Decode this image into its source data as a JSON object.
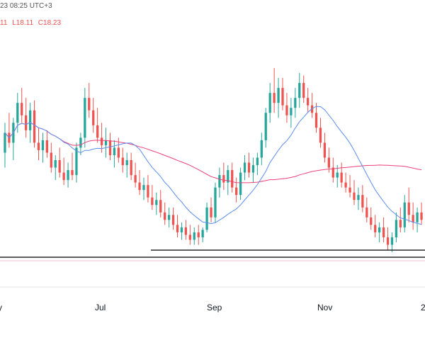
{
  "header": {
    "datetime": "23 08:25 UTC+3",
    "ohlc": {
      "high_fragment": "11",
      "low": "L18.11",
      "close": "C18.23"
    }
  },
  "colors": {
    "up": "#26a69a",
    "down": "#ef5350",
    "ma_fast": "#5b8def",
    "ma_slow": "#ec407a",
    "support_line": "#000000",
    "text": "#131722"
  },
  "chart_data": {
    "type": "candlestick",
    "x_tick_labels": [
      "y",
      "Jul",
      "Sep",
      "Nov",
      "2"
    ],
    "last_close": 18.23,
    "last_low": 18.11,
    "indicators": [
      {
        "type": "moving_average",
        "role": "fast",
        "color": "#5b8def"
      },
      {
        "type": "moving_average",
        "role": "slow",
        "color": "#ec407a"
      }
    ],
    "support_lines": [
      "horizontal line near the lows (Aug–Dec)",
      "horizontal line spanning full width below lows"
    ],
    "grid": false,
    "legend": "none",
    "note": "Price y-axis values are not visible in the screenshot; the series below is a relative price proxy in arbitrary index units.",
    "candles": [
      {
        "o": 58,
        "h": 70,
        "l": 52,
        "c": 66
      },
      {
        "o": 66,
        "h": 74,
        "l": 60,
        "c": 62
      },
      {
        "o": 62,
        "h": 72,
        "l": 55,
        "c": 70
      },
      {
        "o": 70,
        "h": 82,
        "l": 66,
        "c": 78
      },
      {
        "o": 78,
        "h": 84,
        "l": 70,
        "c": 73
      },
      {
        "o": 73,
        "h": 80,
        "l": 64,
        "c": 67
      },
      {
        "o": 67,
        "h": 78,
        "l": 62,
        "c": 75
      },
      {
        "o": 75,
        "h": 79,
        "l": 60,
        "c": 62
      },
      {
        "o": 62,
        "h": 68,
        "l": 55,
        "c": 59
      },
      {
        "o": 59,
        "h": 66,
        "l": 54,
        "c": 63
      },
      {
        "o": 63,
        "h": 67,
        "l": 56,
        "c": 58
      },
      {
        "o": 58,
        "h": 62,
        "l": 50,
        "c": 52
      },
      {
        "o": 52,
        "h": 57,
        "l": 47,
        "c": 55
      },
      {
        "o": 55,
        "h": 60,
        "l": 48,
        "c": 50
      },
      {
        "o": 50,
        "h": 56,
        "l": 45,
        "c": 47
      },
      {
        "o": 47,
        "h": 54,
        "l": 44,
        "c": 51
      },
      {
        "o": 51,
        "h": 58,
        "l": 47,
        "c": 49
      },
      {
        "o": 49,
        "h": 62,
        "l": 46,
        "c": 60
      },
      {
        "o": 60,
        "h": 66,
        "l": 57,
        "c": 64
      },
      {
        "o": 64,
        "h": 84,
        "l": 60,
        "c": 80
      },
      {
        "o": 80,
        "h": 86,
        "l": 72,
        "c": 75
      },
      {
        "o": 75,
        "h": 80,
        "l": 66,
        "c": 69
      },
      {
        "o": 69,
        "h": 76,
        "l": 62,
        "c": 64
      },
      {
        "o": 64,
        "h": 70,
        "l": 58,
        "c": 61
      },
      {
        "o": 61,
        "h": 68,
        "l": 56,
        "c": 63
      },
      {
        "o": 63,
        "h": 66,
        "l": 55,
        "c": 57
      },
      {
        "o": 57,
        "h": 63,
        "l": 52,
        "c": 60
      },
      {
        "o": 60,
        "h": 64,
        "l": 54,
        "c": 56
      },
      {
        "o": 56,
        "h": 60,
        "l": 50,
        "c": 53
      },
      {
        "o": 53,
        "h": 58,
        "l": 48,
        "c": 55
      },
      {
        "o": 55,
        "h": 58,
        "l": 47,
        "c": 49
      },
      {
        "o": 49,
        "h": 54,
        "l": 44,
        "c": 46
      },
      {
        "o": 46,
        "h": 51,
        "l": 41,
        "c": 43
      },
      {
        "o": 43,
        "h": 48,
        "l": 39,
        "c": 45
      },
      {
        "o": 45,
        "h": 49,
        "l": 38,
        "c": 40
      },
      {
        "o": 40,
        "h": 45,
        "l": 35,
        "c": 37
      },
      {
        "o": 37,
        "h": 42,
        "l": 33,
        "c": 39
      },
      {
        "o": 39,
        "h": 43,
        "l": 32,
        "c": 34
      },
      {
        "o": 34,
        "h": 38,
        "l": 29,
        "c": 31
      },
      {
        "o": 31,
        "h": 36,
        "l": 28,
        "c": 33
      },
      {
        "o": 33,
        "h": 36,
        "l": 27,
        "c": 29
      },
      {
        "o": 29,
        "h": 33,
        "l": 24,
        "c": 26
      },
      {
        "o": 26,
        "h": 30,
        "l": 23,
        "c": 28
      },
      {
        "o": 28,
        "h": 31,
        "l": 23,
        "c": 25
      },
      {
        "o": 25,
        "h": 29,
        "l": 21,
        "c": 23
      },
      {
        "o": 23,
        "h": 28,
        "l": 21,
        "c": 26
      },
      {
        "o": 26,
        "h": 29,
        "l": 21,
        "c": 24
      },
      {
        "o": 24,
        "h": 28,
        "l": 22,
        "c": 27
      },
      {
        "o": 27,
        "h": 38,
        "l": 26,
        "c": 36
      },
      {
        "o": 36,
        "h": 40,
        "l": 30,
        "c": 32
      },
      {
        "o": 32,
        "h": 46,
        "l": 30,
        "c": 44
      },
      {
        "o": 44,
        "h": 52,
        "l": 40,
        "c": 49
      },
      {
        "o": 49,
        "h": 54,
        "l": 43,
        "c": 46
      },
      {
        "o": 46,
        "h": 53,
        "l": 41,
        "c": 51
      },
      {
        "o": 51,
        "h": 54,
        "l": 42,
        "c": 44
      },
      {
        "o": 44,
        "h": 48,
        "l": 38,
        "c": 41
      },
      {
        "o": 41,
        "h": 52,
        "l": 39,
        "c": 50
      },
      {
        "o": 50,
        "h": 57,
        "l": 47,
        "c": 54
      },
      {
        "o": 54,
        "h": 58,
        "l": 48,
        "c": 50
      },
      {
        "o": 50,
        "h": 56,
        "l": 46,
        "c": 53
      },
      {
        "o": 53,
        "h": 58,
        "l": 49,
        "c": 56
      },
      {
        "o": 56,
        "h": 66,
        "l": 53,
        "c": 63
      },
      {
        "o": 63,
        "h": 76,
        "l": 60,
        "c": 74
      },
      {
        "o": 74,
        "h": 86,
        "l": 70,
        "c": 82
      },
      {
        "o": 82,
        "h": 92,
        "l": 74,
        "c": 78
      },
      {
        "o": 78,
        "h": 88,
        "l": 72,
        "c": 84
      },
      {
        "o": 84,
        "h": 88,
        "l": 75,
        "c": 77
      },
      {
        "o": 77,
        "h": 82,
        "l": 70,
        "c": 73
      },
      {
        "o": 73,
        "h": 80,
        "l": 68,
        "c": 76
      },
      {
        "o": 76,
        "h": 84,
        "l": 72,
        "c": 80
      },
      {
        "o": 80,
        "h": 90,
        "l": 76,
        "c": 86
      },
      {
        "o": 86,
        "h": 89,
        "l": 78,
        "c": 80
      },
      {
        "o": 80,
        "h": 84,
        "l": 74,
        "c": 77
      },
      {
        "o": 77,
        "h": 82,
        "l": 72,
        "c": 74
      },
      {
        "o": 74,
        "h": 78,
        "l": 66,
        "c": 68
      },
      {
        "o": 68,
        "h": 72,
        "l": 60,
        "c": 62
      },
      {
        "o": 62,
        "h": 66,
        "l": 54,
        "c": 56
      },
      {
        "o": 56,
        "h": 60,
        "l": 50,
        "c": 52
      },
      {
        "o": 52,
        "h": 56,
        "l": 46,
        "c": 48
      },
      {
        "o": 48,
        "h": 53,
        "l": 44,
        "c": 50
      },
      {
        "o": 50,
        "h": 54,
        "l": 44,
        "c": 46
      },
      {
        "o": 46,
        "h": 50,
        "l": 42,
        "c": 44
      },
      {
        "o": 44,
        "h": 49,
        "l": 40,
        "c": 42
      },
      {
        "o": 42,
        "h": 47,
        "l": 37,
        "c": 39
      },
      {
        "o": 39,
        "h": 44,
        "l": 35,
        "c": 41
      },
      {
        "o": 41,
        "h": 45,
        "l": 34,
        "c": 36
      },
      {
        "o": 36,
        "h": 40,
        "l": 30,
        "c": 32
      },
      {
        "o": 32,
        "h": 36,
        "l": 27,
        "c": 29
      },
      {
        "o": 29,
        "h": 33,
        "l": 24,
        "c": 26
      },
      {
        "o": 26,
        "h": 30,
        "l": 22,
        "c": 28
      },
      {
        "o": 28,
        "h": 32,
        "l": 22,
        "c": 24
      },
      {
        "o": 24,
        "h": 28,
        "l": 19,
        "c": 21
      },
      {
        "o": 21,
        "h": 26,
        "l": 18,
        "c": 24
      },
      {
        "o": 24,
        "h": 34,
        "l": 22,
        "c": 31
      },
      {
        "o": 31,
        "h": 36,
        "l": 26,
        "c": 28
      },
      {
        "o": 28,
        "h": 41,
        "l": 26,
        "c": 38
      },
      {
        "o": 38,
        "h": 44,
        "l": 30,
        "c": 33
      },
      {
        "o": 33,
        "h": 38,
        "l": 27,
        "c": 30
      },
      {
        "o": 30,
        "h": 36,
        "l": 26,
        "c": 34
      },
      {
        "o": 34,
        "h": 38,
        "l": 29,
        "c": 31
      }
    ]
  }
}
